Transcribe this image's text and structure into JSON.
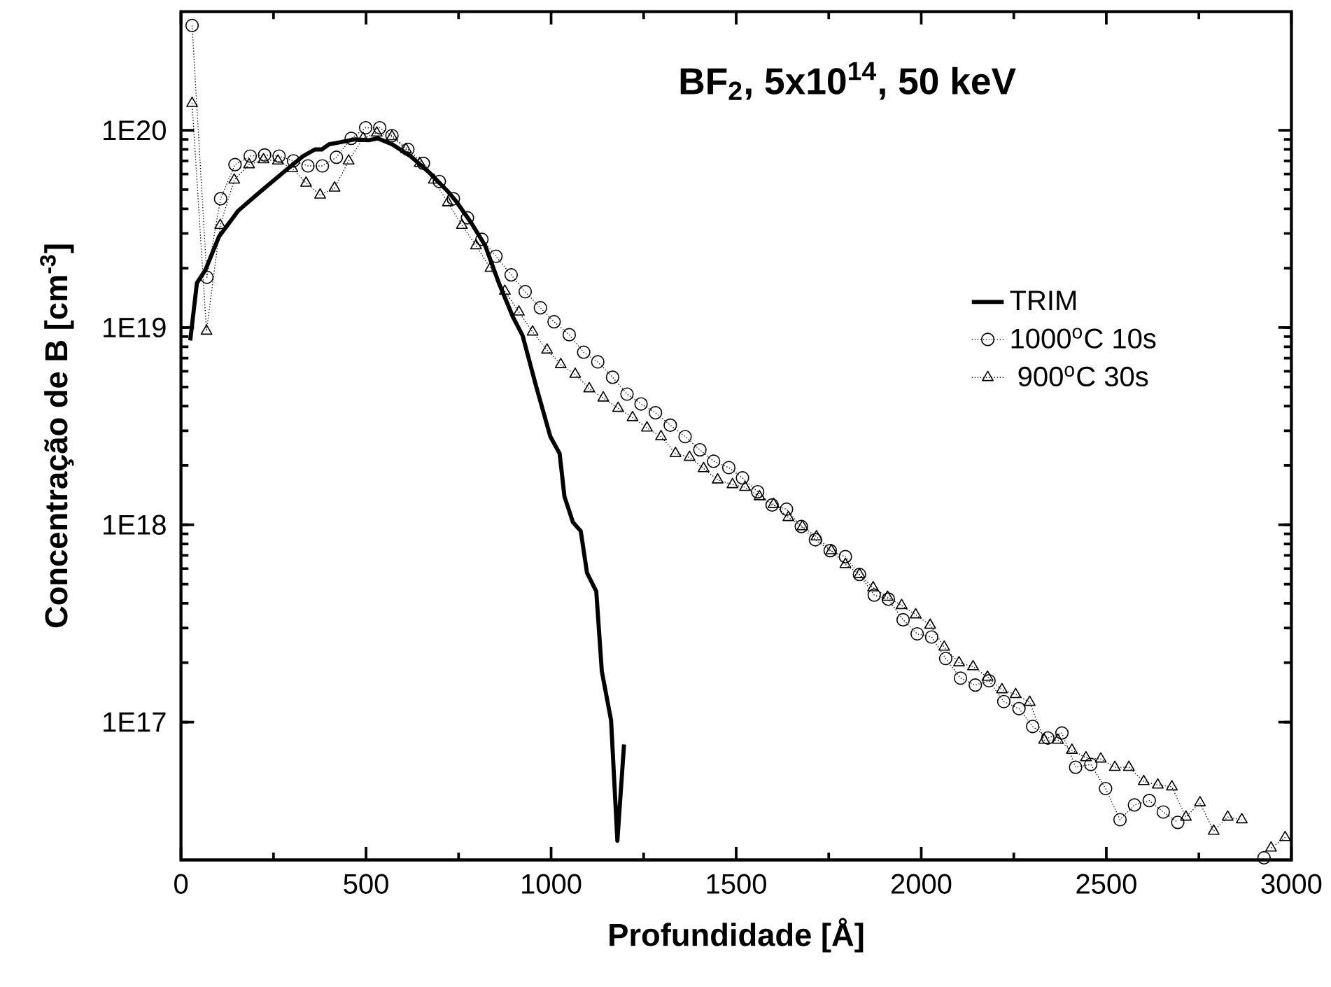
{
  "chart_data": {
    "type": "line",
    "title": "**BF$_{2}$, 5x10$^{14}$, 50 keV**",
    "xlabel": "Profundidade [Å]",
    "ylabel": "Concentração de B [cm$^{-3}$]",
    "log": "y",
    "legend": "right",
    "xlim": [
      0,
      3000
    ],
    "xticks": [
      0,
      500,
      1000,
      1500,
      2000,
      2500,
      3000
    ],
    "ylim": [
      2e+16,
      4e+20
    ],
    "yticks": [
      {
        "value": 1e+17,
        "label": "1E17"
      },
      {
        "value": 1e+18,
        "label": "1E18"
      },
      {
        "value": 1e+19,
        "label": "1E19"
      },
      {
        "value": 1e+20,
        "label": "1E20"
      }
    ],
    "series": [
      {
        "name": "TRIM",
        "color": "#000000",
        "marker": "none",
        "line_style": "solid",
        "x": [
          25,
          43,
          66,
          103,
          154,
          204,
          242,
          293,
          330,
          362,
          381,
          400,
          431,
          469,
          507,
          532,
          570,
          620,
          671,
          721,
          746,
          784,
          822,
          860,
          897,
          923,
          960,
          998,
          1023,
          1036,
          1059,
          1080,
          1097,
          1122,
          1137,
          1162,
          1179,
          1197
        ],
        "values": [
          8.6e+18,
          1.68e+19,
          1.96e+19,
          2.9e+19,
          3.9e+19,
          4.7e+19,
          5.4e+19,
          6.5e+19,
          7.4e+19,
          8e+19,
          8e+19,
          8.5e+19,
          8.7e+19,
          9e+19,
          8.9e+19,
          9.1e+19,
          8.5e+19,
          7.4e+19,
          6.1e+19,
          4.9e+19,
          4.3e+19,
          3.4e+19,
          2.6e+19,
          1.66e+19,
          1.13e+19,
          9.1e+18,
          5e+18,
          2.8e+18,
          2.3e+18,
          1.39e+18,
          1.03e+18,
          9.3e+17,
          5.7e+17,
          4.6e+17,
          1.81e+17,
          1.02e+17,
          2.5e+16,
          7.7e+16
        ]
      },
      {
        "name": "1000$^{o}$C 10s",
        "color": "#000000",
        "marker": "circle",
        "line_style": "dotted",
        "x": [
          30,
          70,
          107,
          146,
          187,
          226,
          265,
          304,
          343,
          382,
          420,
          460,
          499,
          537,
          570,
          613,
          655,
          698,
          736,
          774,
          813,
          851,
          892,
          930,
          971,
          1008,
          1049,
          1088,
          1126,
          1166,
          1205,
          1243,
          1282,
          1322,
          1362,
          1402,
          1439,
          1480,
          1517,
          1558,
          1597,
          1636,
          1676,
          1714,
          1754,
          1795,
          1833,
          1873,
          1911,
          1951,
          1989,
          2028,
          2066,
          2106,
          2146,
          2183,
          2223,
          2264,
          2301,
          2342,
          2380,
          2417,
          2458,
          2498,
          2537,
          2576,
          2616,
          2654,
          2693,
          2730,
          2926
        ],
        "values": [
          3.4e+20,
          1.8e+19,
          4.5e+19,
          6.7e+19,
          7.4e+19,
          7.5e+19,
          7.4e+19,
          7e+19,
          6.6e+19,
          6.6e+19,
          7.3e+19,
          9.1e+19,
          1.03e+20,
          1.03e+20,
          9.4e+19,
          8e+19,
          6.8e+19,
          5.5e+19,
          4.5e+19,
          3.6e+19,
          2.8e+19,
          2.3e+19,
          1.85e+19,
          1.52e+19,
          1.26e+19,
          1.07e+19,
          9.2e+18,
          7.5e+18,
          6.7e+18,
          5.6e+18,
          4.6e+18,
          4.1e+18,
          3.7e+18,
          3.2e+18,
          2.8e+18,
          2.4e+18,
          2.1e+18,
          1.95e+18,
          1.73e+18,
          1.47e+18,
          1.26e+18,
          1.2e+18,
          9.8e+17,
          8.4e+17,
          7.4e+17,
          6.9e+17,
          5.6e+17,
          4.4e+17,
          4.2e+17,
          3.3e+17,
          2.8e+17,
          2.7e+17,
          2.1e+17,
          1.67e+17,
          1.54e+17,
          1.62e+17,
          1.27e+17,
          1.17e+17,
          9.5e+16,
          8.3e+16,
          8.8e+16,
          5.9e+16,
          6.1e+16,
          4.6e+16,
          3.2e+16,
          3.8e+16,
          4e+16,
          3.5e+16,
          3.1e+16,
          null,
          2.05e+16
        ]
      },
      {
        "name": " 900$^{o}$C 30s",
        "color": "#000000",
        "marker": "triangle",
        "line_style": "dotted",
        "x": [
          30,
          69,
          106,
          144,
          184,
          223,
          262,
          301,
          338,
          376,
          415,
          453,
          492,
          529,
          570,
          608,
          645,
          683,
          721,
          759,
          797,
          836,
          875,
          913,
          950,
          989,
          1026,
          1065,
          1103,
          1141,
          1181,
          1220,
          1259,
          1297,
          1336,
          1374,
          1412,
          1450,
          1490,
          1524,
          1563,
          1601,
          1641,
          1679,
          1717,
          1757,
          1795,
          1833,
          1870,
          1909,
          1947,
          1985,
          2024,
          2062,
          2102,
          2140,
          2179,
          2218,
          2255,
          2293,
          2332,
          2369,
          2407,
          2445,
          2485,
          2523,
          2561,
          2601,
          2639,
          2677,
          2715,
          2753,
          2790,
          2828,
          2866,
          2905,
          2945,
          2983
        ],
        "values": [
          1.37e+20,
          9.6e+18,
          3.3e+19,
          5.6e+19,
          6.7e+19,
          7.1e+19,
          7e+19,
          6.4e+19,
          5.4e+19,
          4.7e+19,
          5.1e+19,
          7e+19,
          9.1e+19,
          9.7e+19,
          9.3e+19,
          8e+19,
          6.8e+19,
          5.6e+19,
          4.3e+19,
          3.3e+19,
          2.6e+19,
          2e+19,
          1.53e+19,
          1.2e+19,
          9.5e+18,
          7.7e+18,
          6.5e+18,
          5.8e+18,
          4.9e+18,
          4.4e+18,
          3.9e+18,
          3.5e+18,
          3.1e+18,
          2.8e+18,
          2.3e+18,
          2.2e+18,
          1.93e+18,
          1.69e+18,
          1.6e+18,
          1.55e+18,
          1.39e+18,
          1.27e+18,
          1.09e+18,
          9.8e+17,
          8.7e+17,
          7.4e+17,
          6.3e+17,
          5.6e+17,
          4.8e+17,
          4.3e+17,
          3.9e+17,
          3.5e+17,
          3.1e+17,
          2.4e+17,
          2e+17,
          1.91e+17,
          1.69e+17,
          1.46e+17,
          1.38e+17,
          1.26e+17,
          8.1e+16,
          8.1e+16,
          7.2e+16,
          6.6e+16,
          6.5e+16,
          5.9e+16,
          5.9e+16,
          5e+16,
          4.8e+16,
          4.7e+16,
          3.3e+16,
          3.9e+16,
          2.8e+16,
          3.3e+16,
          3.2e+16,
          null,
          2.3e+16,
          2.6e+16
        ]
      }
    ]
  }
}
